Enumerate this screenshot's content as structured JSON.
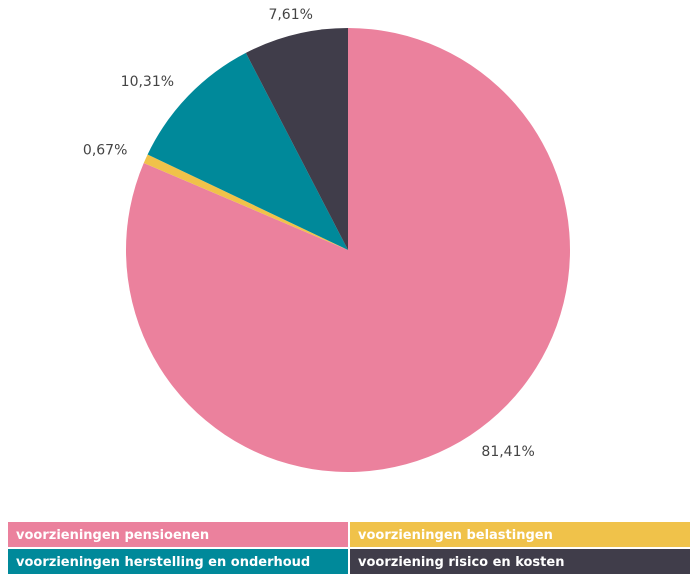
{
  "chart_data": {
    "type": "pie",
    "categories": [
      "voorzieningen pensioenen",
      "voorzieningen belastingen",
      "voorzieningen herstelling en onderhoud",
      "voorziening risico en kosten"
    ],
    "values": [
      81.41,
      0.67,
      10.31,
      7.61
    ],
    "value_labels": [
      "81,41%",
      "0,67%",
      "10,31%",
      "7,61%"
    ],
    "colors": [
      "#eb819d",
      "#f0c24a",
      "#00899a",
      "#403d4a"
    ]
  }
}
